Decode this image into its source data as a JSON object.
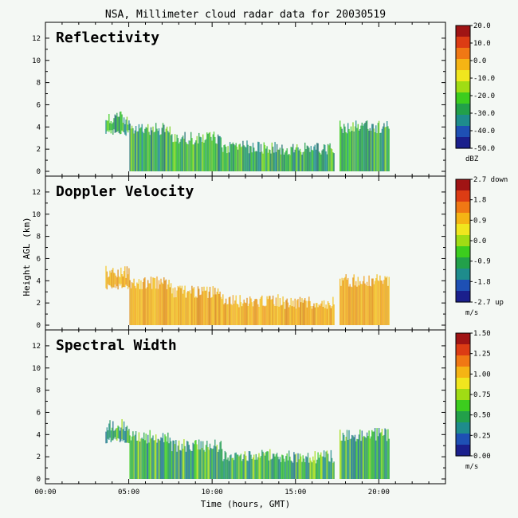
{
  "chart_data": {
    "type": "heatmap",
    "title": "NSA, Millimeter cloud radar data for 20030519",
    "xlabel": "Time (hours, GMT)",
    "ylabel": "Height AGL (km)",
    "xlim": [
      0,
      24
    ],
    "ylim": [
      0,
      13
    ],
    "x_ticks": [
      "00:00",
      "05:00",
      "10:00",
      "15:00",
      "20:00"
    ],
    "x_tick_values": [
      0,
      5,
      10,
      15,
      20
    ],
    "y_ticks": [
      0,
      2,
      4,
      6,
      8,
      10,
      12
    ],
    "panels": [
      {
        "name": "Reflectivity",
        "units": "dBZ",
        "colorbar_ticks": [
          "20.0",
          "10.0",
          "0.0",
          "-10.0",
          "-20.0",
          "-30.0",
          "-40.0",
          "-50.0"
        ],
        "range": [
          -50,
          20
        ],
        "cloud_tone": "green"
      },
      {
        "name": "Doppler Velocity",
        "units": "m/s",
        "colorbar_ticks": [
          "2.7 down",
          "1.8",
          "0.9",
          "0.0",
          "-0.9",
          "-1.8",
          "-2.7 up"
        ],
        "range": [
          -2.7,
          2.7
        ],
        "cloud_tone": "orange"
      },
      {
        "name": "Spectral Width",
        "units": "m/s",
        "colorbar_ticks": [
          "1.50",
          "1.25",
          "1.00",
          "0.75",
          "0.50",
          "0.25",
          "0.00"
        ],
        "range": [
          0,
          1.5
        ],
        "cloud_tone": "greenblue"
      }
    ],
    "cloud_mask": [
      {
        "x0": 3.6,
        "x1": 5.0,
        "ybot": 3.2,
        "ytop": 5.4
      },
      {
        "x0": 5.0,
        "x1": 7.5,
        "ybot": 0.0,
        "ytop": 4.4
      },
      {
        "x0": 7.5,
        "x1": 10.5,
        "ybot": 0.0,
        "ytop": 3.6
      },
      {
        "x0": 10.5,
        "x1": 14.0,
        "ybot": 0.0,
        "ytop": 2.8
      },
      {
        "x0": 14.0,
        "x1": 17.3,
        "ybot": 0.0,
        "ytop": 2.6
      },
      {
        "x0": 17.6,
        "x1": 20.6,
        "ybot": 0.0,
        "ytop": 4.6
      }
    ],
    "grid": false,
    "colors": {
      "background": "#f4f8f4",
      "colorbar": [
        "#1a1f8c",
        "#1e50b4",
        "#1e8c8c",
        "#22a04a",
        "#3ccd1e",
        "#a0dc14",
        "#f0e61e",
        "#f5b414",
        "#f07814",
        "#dc3c14",
        "#a01414"
      ]
    }
  }
}
